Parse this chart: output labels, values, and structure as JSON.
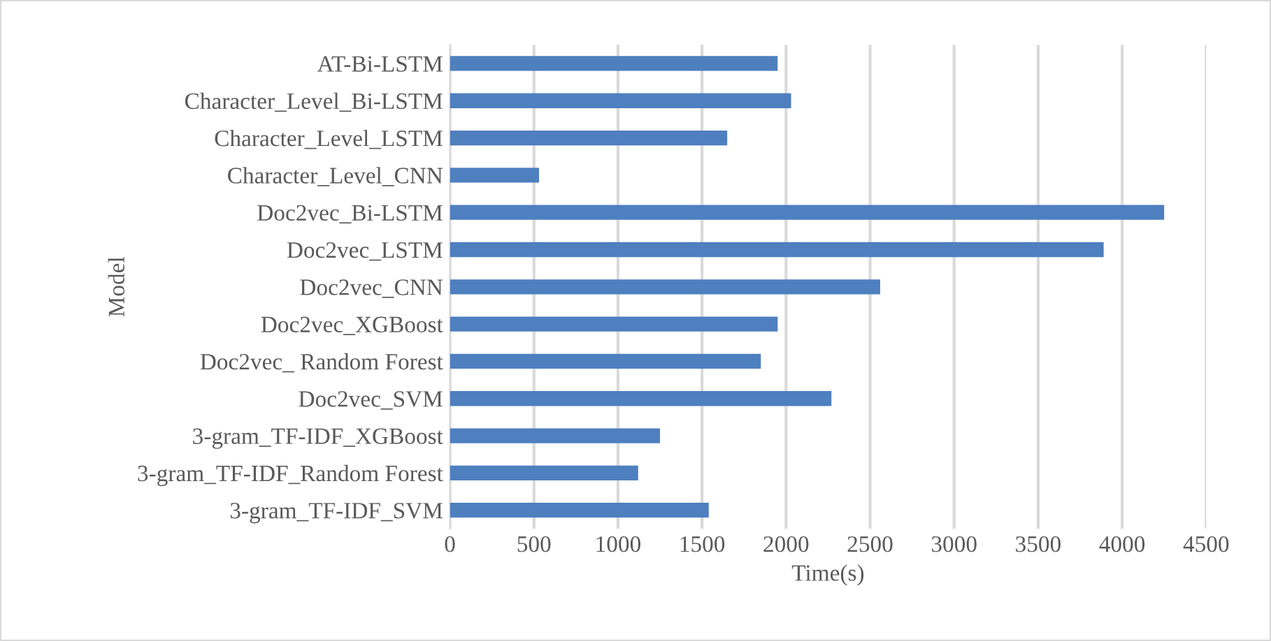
{
  "chart_data": {
    "type": "bar",
    "orientation": "horizontal",
    "xlabel": "Time(s)",
    "ylabel": "Model",
    "categories": [
      "AT-Bi-LSTM",
      "Character_Level_Bi-LSTM",
      "Character_Level_LSTM",
      "Character_Level_CNN",
      "Doc2vec_Bi-LSTM",
      "Doc2vec_LSTM",
      "Doc2vec_CNN",
      "Doc2vec_XGBoost",
      "Doc2vec_ Random Forest",
      "Doc2vec_SVM",
      "3-gram_TF-IDF_XGBoost",
      "3-gram_TF-IDF_Random Forest",
      "3-gram_TF-IDF_SVM"
    ],
    "values": [
      1950,
      2030,
      1650,
      530,
      4250,
      3890,
      2560,
      1950,
      1850,
      2270,
      1250,
      1120,
      1540
    ],
    "color": "#4e7fbf",
    "xlim": [
      0,
      4500
    ],
    "xticks": [
      0,
      500,
      1000,
      1500,
      2000,
      2500,
      3000,
      3500,
      4000,
      4500
    ],
    "grid": "x",
    "legend": false
  }
}
